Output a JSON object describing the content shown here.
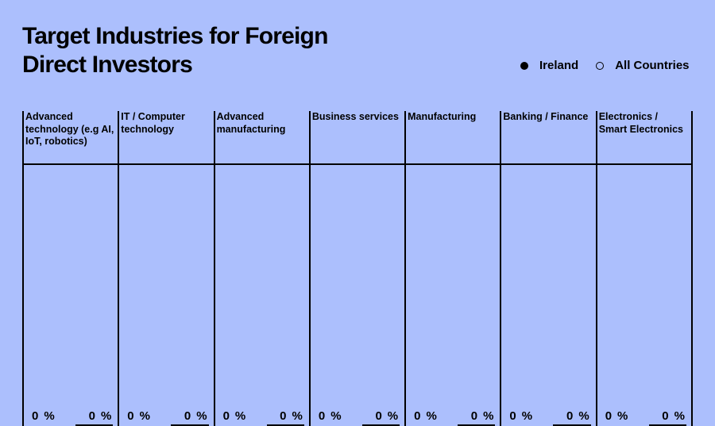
{
  "title": "Target Industries for Foreign Direct Investors",
  "legend": {
    "ireland": "Ireland",
    "all": "All Countries"
  },
  "colors": {
    "background": "#acbffd",
    "ink": "#000000"
  },
  "chart_data": {
    "type": "bar",
    "title": "Target Industries for Foreign Direct Investors",
    "categories": [
      "Advanced technology (e.g AI, IoT, robotics)",
      "IT / Computer technology",
      "Advanced manufacturing",
      "Business services",
      "Manufacturing",
      "Banking / Finance",
      "Electronics / Smart Electronics"
    ],
    "series": [
      {
        "name": "Ireland",
        "values": [
          0,
          0,
          0,
          0,
          0,
          0,
          0
        ]
      },
      {
        "name": "All Countries",
        "values": [
          0,
          0,
          0,
          0,
          0,
          0,
          0
        ]
      }
    ],
    "unit": "%",
    "ylim": [
      0,
      100
    ],
    "legend_position": "top-right"
  }
}
